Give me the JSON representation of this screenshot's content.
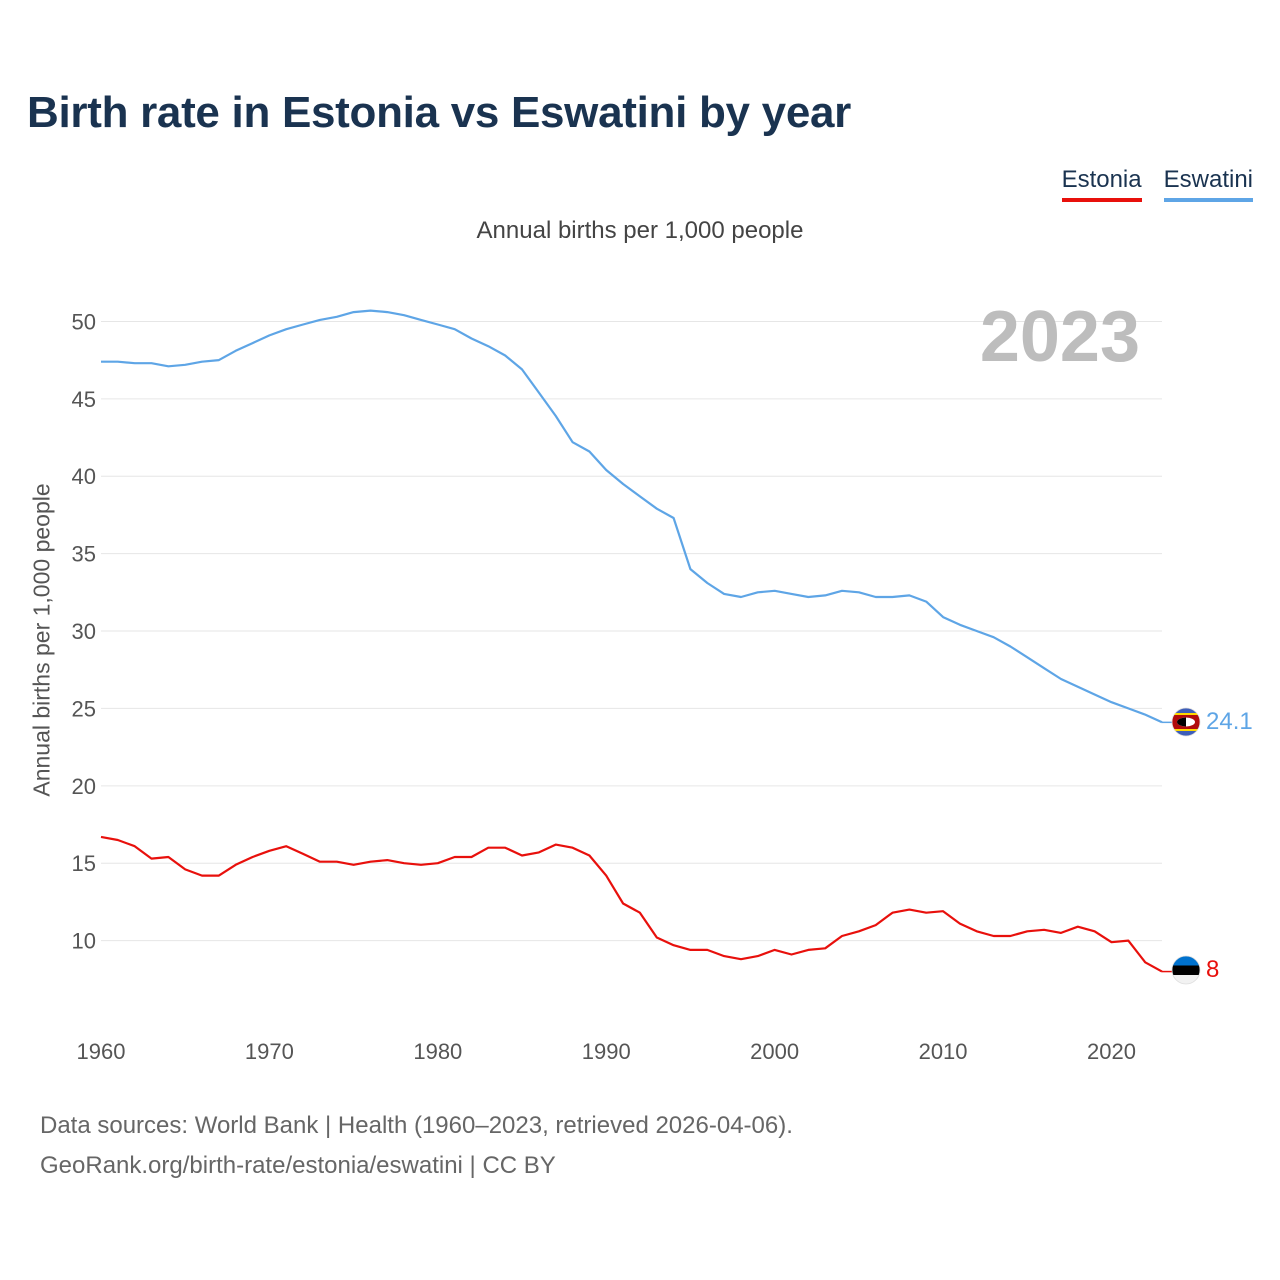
{
  "chart_data": {
    "type": "line",
    "title": "Birth rate in Estonia vs Eswatini by year",
    "subtitle": "Annual births per 1,000 people",
    "ylabel": "Annual births per 1,000 people",
    "xlabel": "",
    "year_label": "2023",
    "xlim": [
      1960,
      2023
    ],
    "ylim": [
      5,
      53
    ],
    "x_ticks": [
      1960,
      1970,
      1980,
      1990,
      2000,
      2010,
      2020
    ],
    "y_ticks": [
      10,
      15,
      20,
      25,
      30,
      35,
      40,
      45,
      50
    ],
    "grid": true,
    "legend_position": "top-right",
    "x": [
      1960,
      1961,
      1962,
      1963,
      1964,
      1965,
      1966,
      1967,
      1968,
      1969,
      1970,
      1971,
      1972,
      1973,
      1974,
      1975,
      1976,
      1977,
      1978,
      1979,
      1980,
      1981,
      1982,
      1983,
      1984,
      1985,
      1986,
      1987,
      1988,
      1989,
      1990,
      1991,
      1992,
      1993,
      1994,
      1995,
      1996,
      1997,
      1998,
      1999,
      2000,
      2001,
      2002,
      2003,
      2004,
      2005,
      2006,
      2007,
      2008,
      2009,
      2010,
      2011,
      2012,
      2013,
      2014,
      2015,
      2016,
      2017,
      2018,
      2019,
      2020,
      2021,
      2022,
      2023
    ],
    "series": [
      {
        "name": "Estonia",
        "color": "#e8100c",
        "end_label": "8",
        "values": [
          16.7,
          16.5,
          16.1,
          15.3,
          15.4,
          14.6,
          14.2,
          14.2,
          14.9,
          15.4,
          15.8,
          16.1,
          15.6,
          15.1,
          15.1,
          14.9,
          15.1,
          15.2,
          15.0,
          14.9,
          15.0,
          15.4,
          15.4,
          16.0,
          16.0,
          15.5,
          15.7,
          16.2,
          16.0,
          15.5,
          14.2,
          12.4,
          11.8,
          10.2,
          9.7,
          9.4,
          9.4,
          9.0,
          8.8,
          9.0,
          9.4,
          9.1,
          9.4,
          9.5,
          10.3,
          10.6,
          11.0,
          11.8,
          12.0,
          11.8,
          11.9,
          11.1,
          10.6,
          10.3,
          10.3,
          10.6,
          10.7,
          10.5,
          10.9,
          10.6,
          9.9,
          10.0,
          8.6,
          8.0
        ]
      },
      {
        "name": "Eswatini",
        "color": "#5ea5e6",
        "end_label": "24.1",
        "values": [
          47.4,
          47.4,
          47.3,
          47.3,
          47.1,
          47.2,
          47.4,
          47.5,
          48.1,
          48.6,
          49.1,
          49.5,
          49.8,
          50.1,
          50.3,
          50.6,
          50.7,
          50.6,
          50.4,
          50.1,
          49.8,
          49.5,
          48.9,
          48.4,
          47.8,
          46.9,
          45.4,
          43.9,
          42.2,
          41.6,
          40.4,
          39.5,
          38.7,
          37.9,
          37.3,
          34.0,
          33.1,
          32.4,
          32.2,
          32.5,
          32.6,
          32.4,
          32.2,
          32.3,
          32.6,
          32.5,
          32.2,
          32.2,
          32.3,
          31.9,
          30.9,
          30.4,
          30.0,
          29.6,
          29.0,
          28.3,
          27.6,
          26.9,
          26.4,
          25.9,
          25.4,
          25.0,
          24.6,
          24.1
        ]
      }
    ],
    "source_lines": [
      "Data sources: World Bank | Health (1960–2023, retrieved 2026-04-06).",
      "GeoRank.org/birth-rate/estonia/eswatini | CC BY"
    ]
  }
}
